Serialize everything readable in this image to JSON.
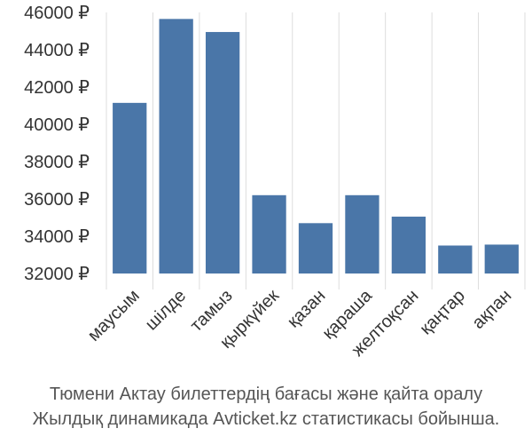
{
  "chart_data": {
    "type": "bar",
    "categories": [
      "маусым",
      "шілде",
      "тамыз",
      "қыркүйек",
      "қазан",
      "қараша",
      "желтоқсан",
      "қаңтар",
      "ақпан"
    ],
    "values": [
      41150,
      45650,
      44950,
      36200,
      34700,
      36200,
      35050,
      33500,
      33550
    ],
    "y_ticks": [
      32000,
      34000,
      36000,
      38000,
      40000,
      42000,
      44000,
      46000
    ],
    "y_tick_labels": [
      "32000 ₽",
      "34000 ₽",
      "36000 ₽",
      "38000 ₽",
      "40000 ₽",
      "42000 ₽",
      "44000 ₽",
      "46000 ₽"
    ],
    "ylim": [
      32000,
      46000
    ],
    "grid": "vertical",
    "bar_color": "#4a76a8",
    "grid_color": "#dddddd"
  },
  "caption": {
    "line1": "Тюмени Актау билеттердің бағасы және қайта оралу",
    "line2": "Жылдық динамикада Avticket.kz статистикасы бойынша."
  }
}
